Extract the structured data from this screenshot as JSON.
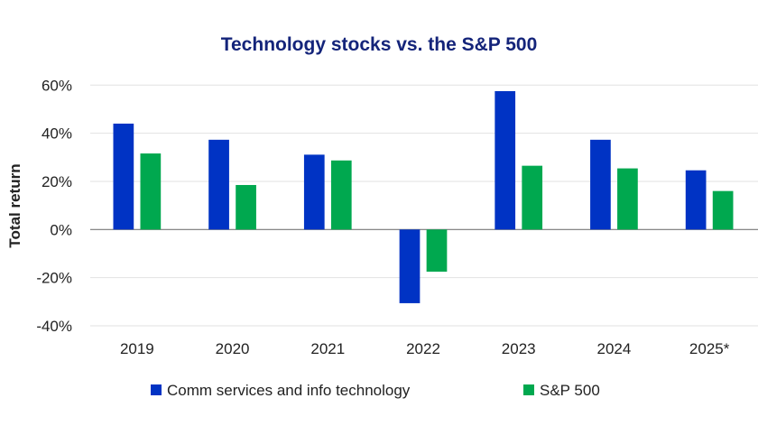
{
  "chart_data": {
    "type": "bar",
    "title": "Technology stocks vs. the S&P 500",
    "xlabel": "",
    "ylabel": "Total return",
    "categories": [
      "2019",
      "2020",
      "2021",
      "2022",
      "2023",
      "2024",
      "2025*"
    ],
    "series": [
      {
        "name": "Comm services and info technology",
        "color": "#0033c4",
        "values": [
          44.0,
          37.3,
          31.1,
          -30.6,
          57.5,
          37.3,
          24.6
        ]
      },
      {
        "name": "S&P 500",
        "color": "#00a84f",
        "values": [
          31.6,
          18.5,
          28.7,
          -17.5,
          26.5,
          25.4,
          16.0
        ]
      }
    ],
    "ylim": [
      -40,
      60
    ],
    "yticks": [
      60,
      40,
      20,
      0,
      -20,
      -40
    ],
    "ytick_labels": [
      "60%",
      "40%",
      "20%",
      "0%",
      "-20%",
      "-40%"
    ],
    "grid": true,
    "legend_position": "bottom"
  }
}
